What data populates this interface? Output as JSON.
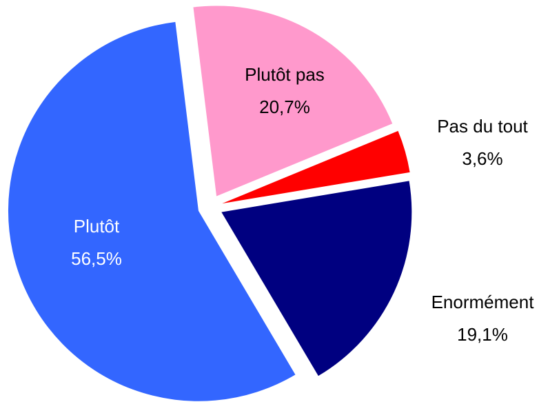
{
  "chart_data": {
    "type": "pie",
    "categories": [
      "Plutôt pas",
      "Pas du tout",
      "Enormément",
      "Plutôt"
    ],
    "values": [
      20.7,
      3.6,
      19.1,
      56.5
    ],
    "value_labels": [
      "20,7%",
      "3,6%",
      "19,1%",
      "56,5%"
    ],
    "colors": [
      "#ff99cc",
      "#ff0000",
      "#000080",
      "#3366ff"
    ]
  }
}
